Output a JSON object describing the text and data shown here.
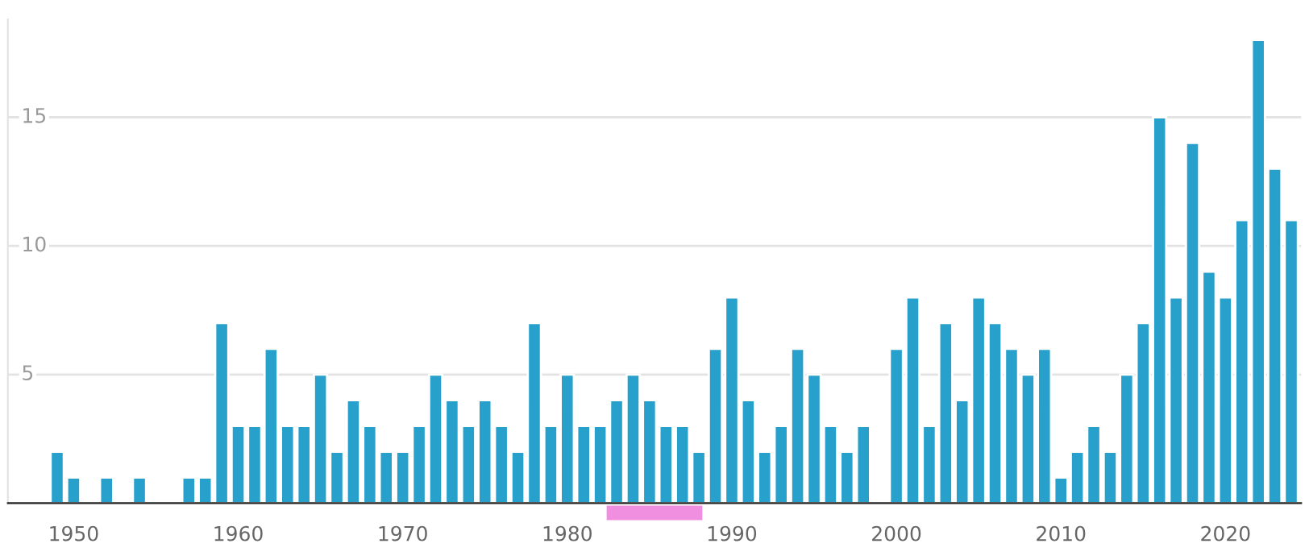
{
  "chart_data": {
    "type": "bar",
    "color": "#27a1cc",
    "x": [
      1949,
      1950,
      1951,
      1952,
      1953,
      1954,
      1955,
      1956,
      1957,
      1958,
      1959,
      1960,
      1961,
      1962,
      1963,
      1964,
      1965,
      1966,
      1967,
      1968,
      1969,
      1970,
      1971,
      1972,
      1973,
      1974,
      1975,
      1976,
      1977,
      1978,
      1979,
      1980,
      1981,
      1982,
      1983,
      1984,
      1985,
      1986,
      1987,
      1988,
      1989,
      1990,
      1991,
      1992,
      1993,
      1994,
      1995,
      1996,
      1997,
      1998,
      1999,
      2000,
      2001,
      2002,
      2003,
      2004,
      2005,
      2006,
      2007,
      2008,
      2009,
      2010,
      2011,
      2012,
      2013,
      2014,
      2015,
      2016,
      2017,
      2018,
      2019,
      2020,
      2021,
      2022,
      2023,
      2024
    ],
    "values": [
      2,
      1,
      null,
      1,
      null,
      1,
      null,
      null,
      1,
      1,
      7,
      3,
      3,
      6,
      3,
      3,
      5,
      2,
      4,
      3,
      2,
      2,
      3,
      5,
      4,
      3,
      4,
      3,
      2,
      7,
      3,
      5,
      3,
      3,
      4,
      5,
      4,
      3,
      3,
      2,
      6,
      8,
      4,
      2,
      3,
      6,
      5,
      3,
      2,
      3,
      null,
      6,
      8,
      3,
      7,
      4,
      8,
      7,
      6,
      5,
      6,
      1,
      2,
      3,
      2,
      5,
      7,
      15,
      8,
      14,
      9,
      8,
      11,
      18,
      13,
      11
    ],
    "xlim": [
      1946,
      2024.6
    ],
    "xticks": [
      1950,
      1960,
      1970,
      1980,
      1990,
      2000,
      2010,
      2020
    ],
    "ylim": [
      0,
      18.8
    ],
    "yticks": [
      5,
      10,
      15
    ],
    "grid": "y"
  }
}
